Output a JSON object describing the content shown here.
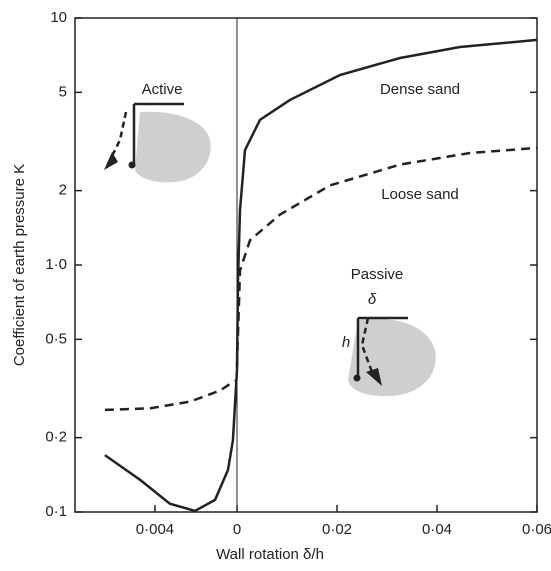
{
  "chart_data": [
    {
      "type": "line",
      "ylabel": "Coefficient of earth pressure K",
      "xlabel": "Wall rotation δ/h",
      "ylog": true,
      "ylim": [
        0.1,
        10
      ],
      "yticks": [
        {
          "value": 0.1,
          "label": "0·1"
        },
        {
          "value": 0.2,
          "label": "0·2"
        },
        {
          "value": 0.5,
          "label": "0·5"
        },
        {
          "value": 1,
          "label": "1·0"
        },
        2,
        5,
        10
      ],
      "xlim": [
        0.0079,
        0
      ],
      "xticks": [
        {
          "value": 0.004,
          "label": "0·004"
        }
      ],
      "annotations": [
        "Active"
      ],
      "series": [
        {
          "color": "#222222",
          "dash": "solid",
          "x": [
            0.00644,
            0.00473,
            0.00327,
            0.00205,
            0.00107,
            0.00044,
            0.0002,
            0
          ],
          "values": [
            0.17,
            0.135,
            0.108,
            0.101,
            0.112,
            0.148,
            0.195,
            0.376
          ]
        },
        {
          "color": "#222222",
          "dash": "dashed",
          "x": [
            0.00644,
            0.00424,
            0.00229,
            0.00083,
            0.0001
          ],
          "values": [
            0.259,
            0.263,
            0.28,
            0.31,
            0.34
          ]
        }
      ]
    },
    {
      "type": "line",
      "xlim": [
        0,
        0.06
      ],
      "xticks": [
        0,
        {
          "value": 0.02,
          "label": "0·02"
        },
        {
          "value": 0.04,
          "label": "0·04"
        },
        {
          "value": 0.06,
          "label": "0·06"
        }
      ],
      "annotations": [
        "Passive",
        "δ",
        "h"
      ],
      "series": [
        {
          "name": "Dense sand",
          "color": "#222222",
          "dash": "solid",
          "x": [
            0,
            0.0002,
            0.0006,
            0.0016,
            0.0046,
            0.0106,
            0.0206,
            0.0326,
            0.0446,
            0.06
          ],
          "values": [
            0.376,
            0.87,
            1.67,
            2.92,
            3.87,
            4.66,
            5.88,
            6.89,
            7.63,
            8.15
          ]
        },
        {
          "name": "Loose sand",
          "color": "#222222",
          "dash": "dashed",
          "x": [
            0,
            0.0006,
            0.0026,
            0.0086,
            0.0186,
            0.0326,
            0.0466,
            0.06
          ],
          "values": [
            0.39,
            0.95,
            1.26,
            1.6,
            2.1,
            2.55,
            2.84,
            2.98
          ]
        }
      ]
    }
  ]
}
